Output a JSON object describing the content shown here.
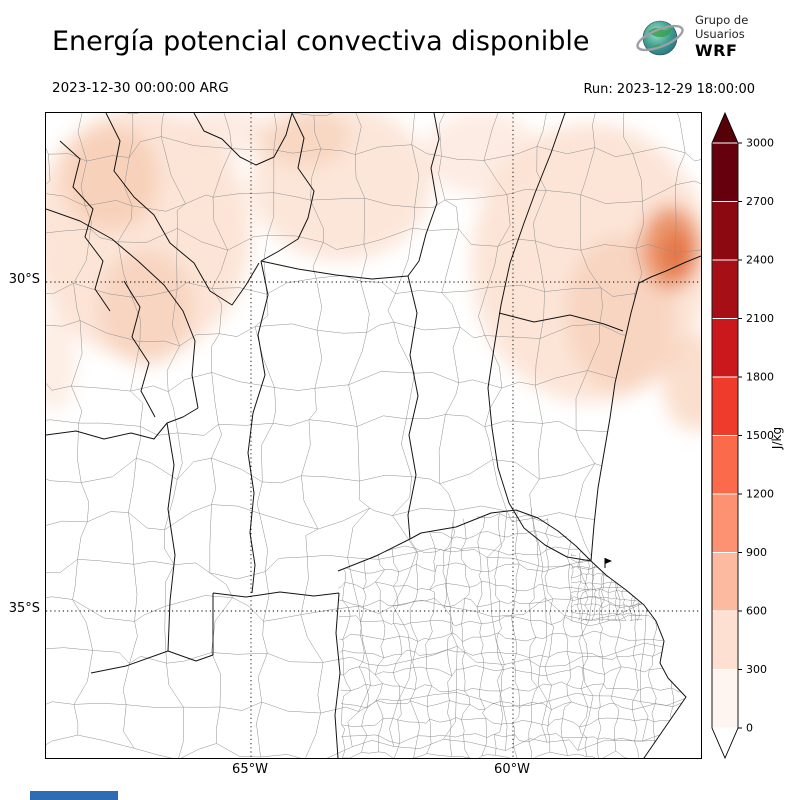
{
  "header": {
    "title": "Energía potencial convectiva disponible",
    "valid_time": "2023-12-30 00:00:00 ARG",
    "run_label": "Run: 2023-12-29 18:00:00",
    "logo": {
      "line1": "Grupo de",
      "line2": "Usuarios",
      "line3": "WRF"
    }
  },
  "axes": {
    "lat": [
      "30°S",
      "35°S"
    ],
    "lon": [
      "65°W",
      "60°W"
    ]
  },
  "colorbar": {
    "unit": "J/kg",
    "ticks": [
      "3000",
      "2700",
      "2400",
      "2100",
      "1800",
      "1500",
      "1200",
      "900",
      "600",
      "300",
      "0"
    ],
    "colors_bottom_to_top": [
      "#fff5f0",
      "#fee0d2",
      "#fcbba1",
      "#fc9272",
      "#fb6a4a",
      "#ef3b2c",
      "#cb181d",
      "#a50f15",
      "#8c0912",
      "#67000d"
    ],
    "over_color": "#560008",
    "under_color": "#ffffff"
  },
  "map": {
    "shading_colors": {
      "light": "#fbe0d0",
      "medium": "#f6c9ae",
      "strong": "#ea8a5c",
      "core": "#e2703f"
    }
  }
}
